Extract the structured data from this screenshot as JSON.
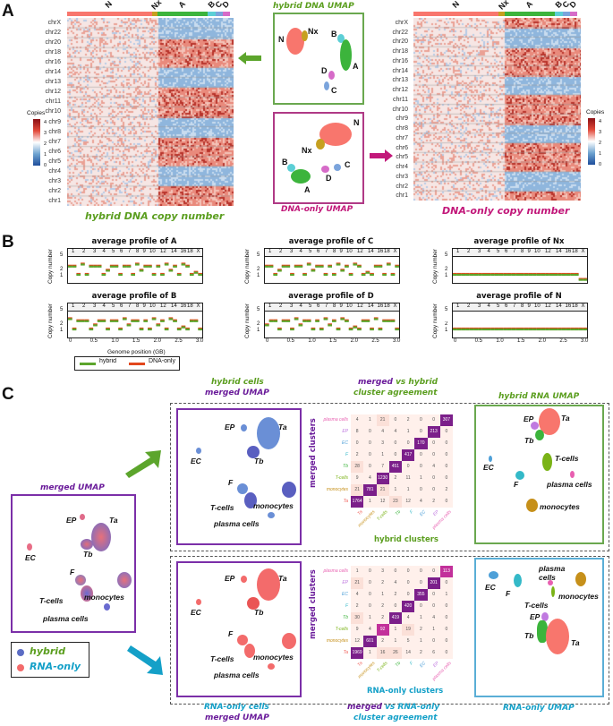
{
  "panels": {
    "A": {
      "letter": "A",
      "cluster_bar": [
        {
          "label": "N",
          "color": "#f8766d"
        },
        {
          "label": "Nx",
          "color": "#c6a020"
        },
        {
          "label": "A",
          "color": "#3cb43c"
        },
        {
          "label": "B",
          "color": "#5ccfd6"
        },
        {
          "label": "C",
          "color": "#7ba4dc"
        },
        {
          "label": "D",
          "color": "#d66bc8"
        }
      ],
      "left_heatmap": {
        "title": "hybrid DNA copy number",
        "chromosomes": [
          "chrX",
          "chr22",
          "chr20",
          "chr18",
          "chr16",
          "chr14",
          "chr13",
          "chr12",
          "chr11",
          "chr10",
          "chr9",
          "chr8",
          "chr7",
          "chr6",
          "chr5",
          "chr4",
          "chr3",
          "chr2",
          "chr1"
        ]
      },
      "right_heatmap": {
        "title": "DNA-only copy number",
        "chromosomes": [
          "chrX",
          "chr22",
          "chr20",
          "chr18",
          "chr16",
          "chr14",
          "chr13",
          "chr12",
          "chr11",
          "chr10",
          "chr9",
          "chr8",
          "chr7",
          "chr6",
          "chr5",
          "chr4",
          "chr3",
          "chr2",
          "chr1"
        ]
      },
      "legend": {
        "title": "Copies",
        "ticks": [
          "4",
          "3",
          "2",
          "1",
          "0"
        ],
        "low_color": "#1f4e9c",
        "mid_color": "#ffffff",
        "high_color": "#8b0f14"
      },
      "hybrid_umap": {
        "title": "hybrid DNA UMAP",
        "border": "#6aa84f",
        "labels": [
          "N",
          "Nx",
          "B",
          "A",
          "D",
          "C"
        ]
      },
      "dna_umap": {
        "title": "DNA-only UMAP",
        "border": "#b03a86",
        "labels": [
          "N",
          "Nx",
          "B",
          "C",
          "D",
          "A"
        ]
      }
    },
    "B": {
      "letter": "B",
      "profiles": [
        {
          "title": "average profile of A"
        },
        {
          "title": "average profile of B"
        },
        {
          "title": "average profile of C"
        },
        {
          "title": "average profile of D"
        },
        {
          "title": "average profile of Nx"
        },
        {
          "title": "average profile of N"
        }
      ],
      "chrom_ticks": [
        "1",
        "2",
        "3",
        "4",
        "5",
        "6",
        "7",
        "8",
        "9",
        "10",
        "12",
        "14",
        "16",
        "18",
        "X"
      ],
      "y_axis_label": "Copy number",
      "y_ticks": [
        "5",
        "2",
        "1"
      ],
      "x_ticks": [
        "0",
        "0.5",
        "1.0",
        "1.5",
        "2.0",
        "2.5",
        "3.0"
      ],
      "x_axis_label": "Genome position (GB)",
      "legend": [
        {
          "label": "hybrid",
          "color": "#5ca52c"
        },
        {
          "label": "DNA-only",
          "color": "#e2471c"
        }
      ]
    },
    "C": {
      "letter": "C",
      "merged_umap": {
        "title": "merged UMAP",
        "labels": [
          "EP",
          "Ta",
          "EC",
          "Tb",
          "F",
          "T-cells",
          "monocytes",
          "plasma cells"
        ]
      },
      "legend": [
        {
          "label": "hybrid",
          "dot": "#5b6cc4",
          "text_color": "#5b9e1f"
        },
        {
          "label": "RNA-only",
          "dot": "#f36b6b",
          "text_color": "#14a0c8"
        }
      ],
      "hybrid_cells_umap": {
        "title_line1": "hybrid cells",
        "title_line2": "merged UMAP",
        "labels": [
          "EP",
          "Ta",
          "EC",
          "Tb",
          "F",
          "T-cells",
          "monocytes",
          "plasma cells"
        ]
      },
      "rna_cells_umap": {
        "title_line1": "RNA-only cells",
        "title_line2": "merged UMAP",
        "labels": [
          "EP",
          "Ta",
          "EC",
          "Tb",
          "F",
          "T-cells",
          "monocytes",
          "plasma cells"
        ]
      },
      "hybrid_rna_umap": {
        "title": "hybrid RNA UMAP",
        "labels": [
          "EP",
          "Ta",
          "Tb",
          "EC",
          "T-cells",
          "F",
          "plasma cells",
          "monocytes"
        ]
      },
      "rna_only_umap": {
        "title": "RNA-only UMAP",
        "labels": [
          "EC",
          "F",
          "plasma",
          "cells",
          "T-cells",
          "monocytes",
          "EP",
          "Tb",
          "Ta"
        ]
      },
      "agreement_top": {
        "title_word1": "merged",
        "title_word2": "vs hybrid",
        "title_line2": "cluster agreement",
        "row_axis": "merged clusters",
        "col_axis": "hybrid clusters"
      },
      "agreement_bottom": {
        "title_word1": "merged",
        "title_word2": "vs RNA-only",
        "title_line2": "cluster agreement",
        "row_axis": "merged clusters",
        "col_axis": "RNA-only clusters"
      }
    }
  },
  "chart_data": [
    {
      "type": "heatmap",
      "title": "merged vs hybrid cluster agreement",
      "xlabel": "hybrid clusters",
      "ylabel": "merged clusters",
      "rows": [
        "plasma cells",
        "EP",
        "EC",
        "F",
        "Tb",
        "T-cells",
        "monocytes",
        "Ta"
      ],
      "cols": [
        "Ta",
        "monocytes",
        "T-cells",
        "Tb",
        "F",
        "EC",
        "EP",
        "plasma cells"
      ],
      "values": [
        [
          4,
          1,
          21,
          0,
          2,
          0,
          0,
          307
        ],
        [
          8,
          0,
          4,
          4,
          1,
          0,
          213,
          0
        ],
        [
          0,
          0,
          3,
          0,
          0,
          170,
          0,
          0
        ],
        [
          2,
          0,
          1,
          0,
          417,
          0,
          0,
          0
        ],
        [
          28,
          0,
          7,
          451,
          0,
          0,
          4,
          0
        ],
        [
          9,
          4,
          1230,
          2,
          11,
          1,
          0,
          0
        ],
        [
          21,
          781,
          21,
          1,
          1,
          0,
          0,
          2
        ],
        [
          1764,
          1,
          12,
          23,
          12,
          4,
          2,
          0
        ]
      ]
    },
    {
      "type": "heatmap",
      "title": "merged vs RNA-only cluster agreement",
      "xlabel": "RNA-only clusters",
      "ylabel": "merged clusters",
      "rows": [
        "plasma cells",
        "EP",
        "EC",
        "F",
        "Tb",
        "T-cells",
        "monocytes",
        "Ta"
      ],
      "cols": [
        "Ta",
        "monocytes",
        "T-cells",
        "Tb",
        "F",
        "EC",
        "EP",
        "plasma cells"
      ],
      "values": [
        [
          1,
          0,
          3,
          0,
          0,
          0,
          0,
          113
        ],
        [
          21,
          0,
          2,
          4,
          0,
          0,
          201,
          0
        ],
        [
          4,
          0,
          1,
          2,
          0,
          355,
          0,
          1
        ],
        [
          2,
          0,
          2,
          0,
          420,
          0,
          0,
          0
        ],
        [
          30,
          1,
          2,
          419,
          4,
          1,
          4,
          0
        ],
        [
          9,
          4,
          92,
          1,
          19,
          2,
          1,
          0
        ],
        [
          12,
          601,
          2,
          1,
          5,
          1,
          0,
          0
        ],
        [
          1969,
          1,
          16,
          26,
          14,
          2,
          6,
          0
        ]
      ]
    }
  ],
  "colors": {
    "row_label_colors": [
      "#e85fb0",
      "#c07ae0",
      "#4ea0d8",
      "#34b9c8",
      "#3cb43c",
      "#7ab317",
      "#c6901a",
      "#f0605a"
    ],
    "matrix_high": "#7b1f8a",
    "matrix_low": "#fff0eb"
  }
}
